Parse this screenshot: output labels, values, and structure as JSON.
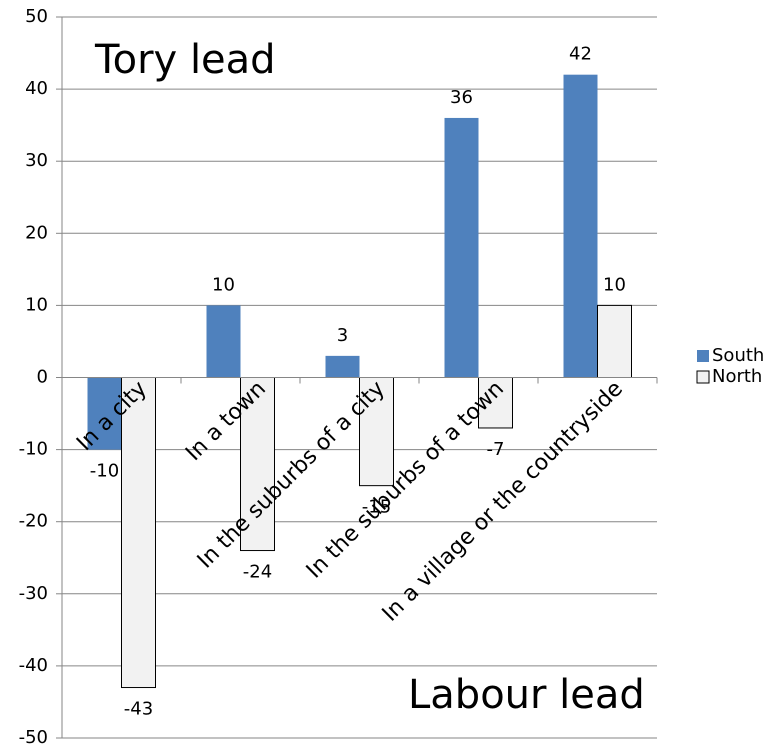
{
  "chart_data": {
    "type": "bar",
    "categories": [
      "In a city",
      "In a town",
      "In the suburbs of a city",
      "In the suburbs of a town",
      "In a village or the countryside"
    ],
    "series": [
      {
        "name": "South",
        "color": "#4f81bd",
        "values": [
          -10,
          10,
          3,
          36,
          42
        ]
      },
      {
        "name": "North",
        "color": "#f2f2f2",
        "values": [
          -43,
          -24,
          -15,
          -7,
          10
        ]
      }
    ],
    "annotations": [
      "Tory lead",
      "Labour lead"
    ],
    "ylim": [
      -50,
      50
    ],
    "yticks": [
      -50,
      -40,
      -30,
      -20,
      -10,
      0,
      10,
      20,
      30,
      40,
      50
    ],
    "grid": true,
    "legend": "right"
  }
}
